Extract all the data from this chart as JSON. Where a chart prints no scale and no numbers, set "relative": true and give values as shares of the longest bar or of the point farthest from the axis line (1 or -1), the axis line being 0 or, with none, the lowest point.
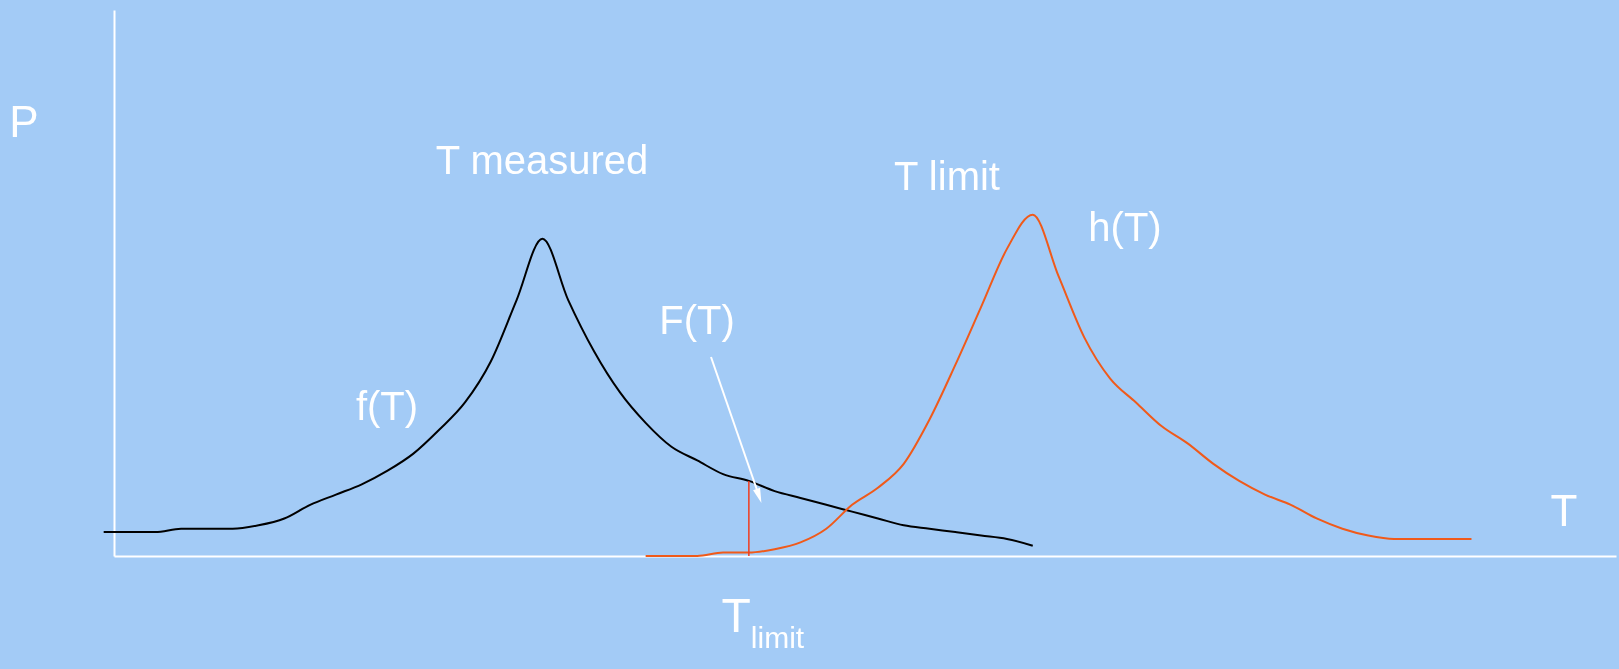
{
  "chart_data": {
    "type": "line",
    "relative": true,
    "xlabel": "T",
    "ylabel": "P",
    "categories": [
      null,
      null,
      null,
      null,
      null,
      null,
      null,
      null,
      null,
      null,
      null,
      null,
      null,
      null,
      null,
      null,
      null,
      null,
      null,
      null,
      null,
      null,
      null,
      null,
      null,
      null,
      null,
      null,
      null,
      null,
      null,
      null,
      null,
      null,
      null,
      null,
      null,
      null,
      null,
      null,
      null,
      null,
      null,
      null,
      null,
      null,
      null,
      null,
      null,
      null,
      null,
      null,
      null,
      null
    ],
    "series": [
      {
        "name": "f(T)",
        "color": "#000000",
        "values": [
          0.07,
          0.07,
          0.07,
          0.08,
          0.08,
          0.08,
          0.09,
          0.11,
          0.15,
          0.18,
          0.21,
          0.25,
          0.3,
          0.37,
          0.45,
          0.57,
          0.75,
          0.93,
          0.75,
          0.6,
          0.48,
          0.39,
          0.32,
          0.28,
          0.24,
          0.22,
          0.19,
          0.17,
          0.15,
          0.13,
          0.11,
          0.09,
          0.08,
          0.07,
          0.06,
          0.05,
          0.03,
          null,
          null,
          null,
          null,
          null,
          null,
          null,
          null,
          null,
          null,
          null,
          null,
          null,
          null,
          null,
          null,
          null
        ]
      },
      {
        "name": "h(T)",
        "color": "#f05a1a",
        "values": [
          null,
          null,
          null,
          null,
          null,
          null,
          null,
          null,
          null,
          null,
          null,
          null,
          null,
          null,
          null,
          null,
          null,
          null,
          null,
          null,
          null,
          0,
          0,
          0,
          0.01,
          0.01,
          0.02,
          0.04,
          0.08,
          0.15,
          0.2,
          0.27,
          0.4,
          0.56,
          0.73,
          0.9,
          1,
          0.82,
          0.64,
          0.52,
          0.45,
          0.38,
          0.33,
          0.27,
          0.22,
          0.18,
          0.15,
          0.11,
          0.08,
          0.06,
          0.05,
          0.05,
          0.05,
          0.05
        ]
      }
    ],
    "annotations": [
      "T measured",
      "T limit",
      "F(T)",
      "T$_{limit}$"
    ],
    "grid": false,
    "marker": "none",
    "line_style": "solid"
  }
}
